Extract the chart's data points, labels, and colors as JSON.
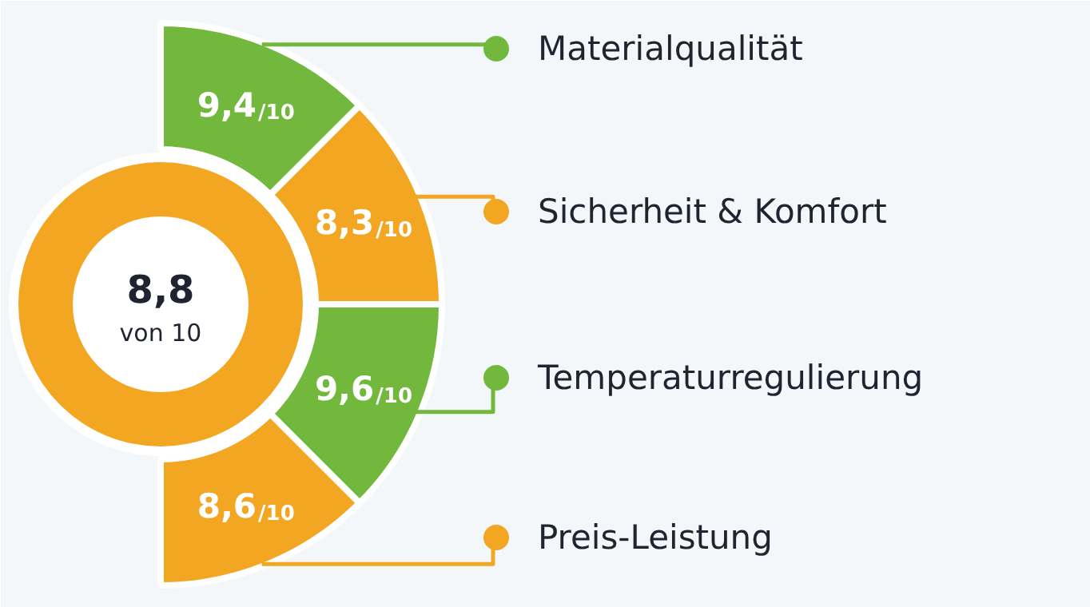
{
  "chart_data": {
    "type": "other",
    "categories": [
      "Materialqualität",
      "Sicherheit & Komfort",
      "Temperaturregulierung",
      "Preis-Leistung"
    ],
    "values": [
      9.4,
      8.3,
      9.6,
      8.6
    ],
    "value_labels": [
      "9,4/10",
      "8,3/10",
      "9,6/10",
      "8,6/10"
    ],
    "colors": [
      "#72b83c",
      "#f2a622",
      "#72b83c",
      "#f2a622"
    ],
    "annotations": [
      "8,8",
      "von 10"
    ]
  }
}
